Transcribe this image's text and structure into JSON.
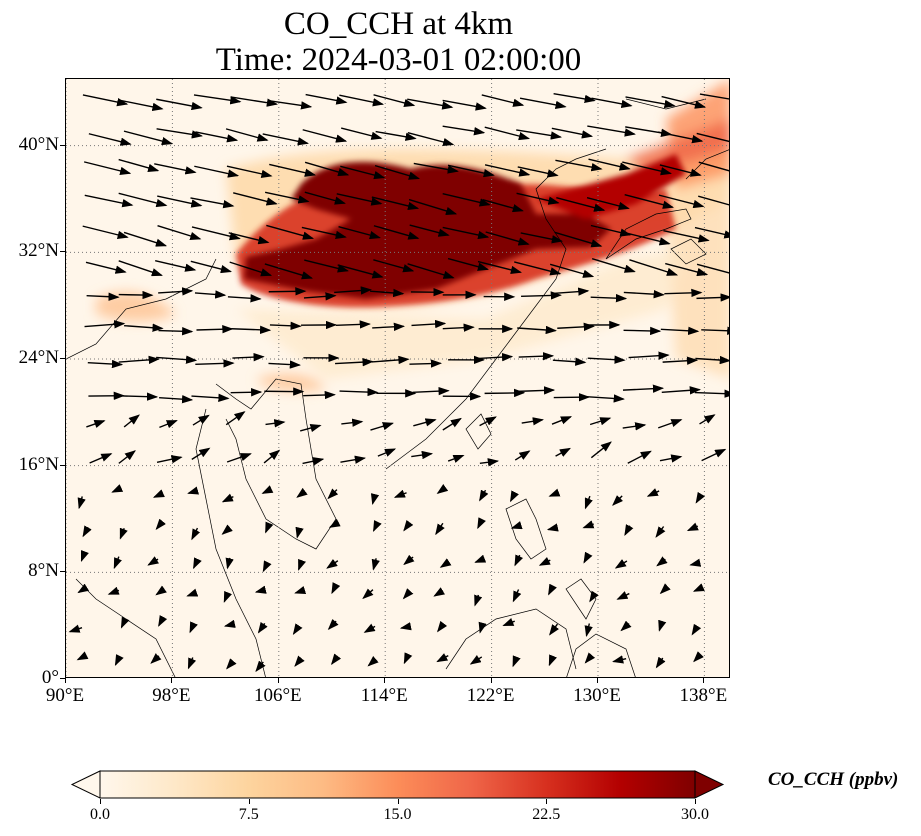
{
  "title": {
    "line1": "CO_CCH at 4km",
    "line2": "Time: 2024-03-01 02:00:00"
  },
  "map": {
    "extent": {
      "lon_min": 90,
      "lon_max": 140,
      "lat_min": 0,
      "lat_max": 45
    },
    "gridlines": "dotted",
    "lat_ticks": [
      "0°",
      "8°N",
      "16°N",
      "24°N",
      "32°N",
      "40°N"
    ],
    "lat_values": [
      0,
      8,
      16,
      24,
      32,
      40
    ],
    "lon_ticks": [
      "90°E",
      "98°E",
      "106°E",
      "114°E",
      "122°E",
      "130°E",
      "138°E"
    ],
    "lon_values": [
      90,
      98,
      106,
      114,
      122,
      130,
      138
    ],
    "field": "CO_CCH",
    "wind_vectors": true
  },
  "colorbar": {
    "label": "CO_CCH (ppbv)",
    "min": 0.0,
    "max": 30.0,
    "ticks": [
      "0.0",
      "7.5",
      "15.0",
      "22.5",
      "30.0"
    ],
    "tick_values": [
      0,
      7.5,
      15,
      22.5,
      30
    ],
    "colormap": "OrRd",
    "colors": [
      "#fff7ec",
      "#fee8c8",
      "#fdd49e",
      "#fdbb84",
      "#fc8d59",
      "#ef6548",
      "#d7301f",
      "#b30000",
      "#7f0000"
    ],
    "extend": "both"
  }
}
